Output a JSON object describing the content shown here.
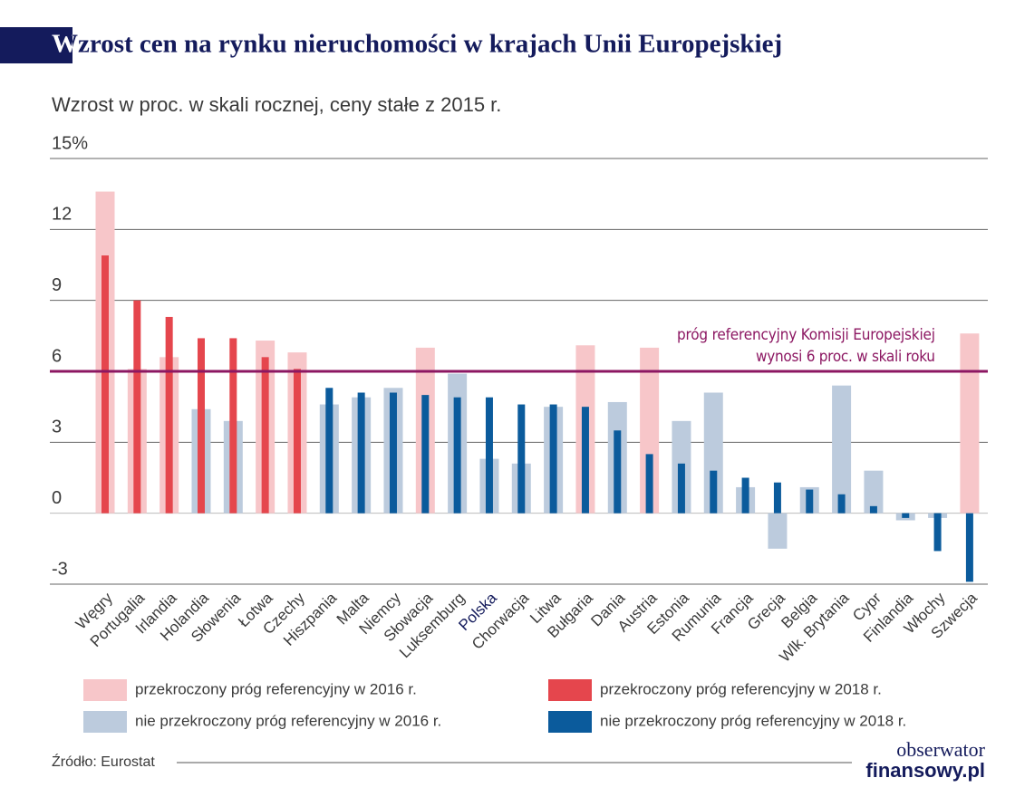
{
  "chart_data": {
    "type": "bar",
    "title": "Wzrost cen na rynku nieruchomości w krajach Unii Europejskiej",
    "subtitle": "Wzrost w proc. w skali rocznej, ceny stałe z 2015 r.",
    "categories": [
      "Węgry",
      "Portugalia",
      "Irlandia",
      "Holandia",
      "Słowenia",
      "Łotwa",
      "Czechy",
      "Hiszpania",
      "Malta",
      "Niemcy",
      "Słowacja",
      "Luksemburg",
      "Polska",
      "Chorwacja",
      "Litwa",
      "Bułgaria",
      "Dania",
      "Austria",
      "Estonia",
      "Rumunia",
      "Francja",
      "Grecja",
      "Belgia",
      "Wlk. Brytania",
      "Cypr",
      "Finlandia",
      "Włochy",
      "Szwecja"
    ],
    "highlight": {
      "index": 12,
      "color": "#141b5c"
    },
    "series": [
      {
        "color_above": "#f7c6c9",
        "color_below": "#bccbdd",
        "values": [
          13.6,
          6.1,
          6.6,
          4.4,
          3.9,
          7.3,
          6.8,
          4.6,
          4.9,
          5.3,
          7.0,
          5.9,
          2.3,
          2.1,
          4.5,
          7.1,
          4.7,
          7.0,
          3.9,
          5.1,
          1.1,
          -1.5,
          1.1,
          5.4,
          1.8,
          -0.3,
          -0.2,
          7.6
        ]
      },
      {
        "color_above": "#e5464d",
        "color_below": "#0b5b9c",
        "values": [
          10.9,
          9.0,
          8.3,
          7.4,
          7.4,
          6.6,
          6.1,
          5.3,
          5.1,
          5.1,
          5.0,
          4.9,
          4.9,
          4.6,
          4.6,
          4.5,
          3.5,
          2.5,
          2.1,
          1.8,
          1.5,
          1.3,
          1.0,
          0.8,
          0.3,
          -0.2,
          -1.6,
          -2.9
        ]
      }
    ],
    "reference_line": {
      "value": 6,
      "color": "#8c1762",
      "label": [
        "próg referencyjny Komisji Europejskiej",
        "wynosi 6 proc. w skali roku"
      ]
    },
    "ylim": [
      -3,
      15
    ],
    "yticks": [
      {
        "value": 15,
        "label": "15%"
      },
      12,
      9,
      6,
      3,
      0,
      -3
    ],
    "grid": true,
    "legend": [
      {
        "label": "przekroczony próg referencyjny w 2016 r.",
        "color": "#f7c6c9"
      },
      {
        "label": "przekroczony próg referencyjny w 2018 r.",
        "color": "#e5464d"
      },
      {
        "label": "nie przekroczony próg referencyjny w 2016 r.",
        "color": "#bccbdd"
      },
      {
        "label": "nie przekroczony próg referencyjny w 2018 r.",
        "color": "#0b5b9c"
      }
    ],
    "source": "Źródło: Eurostat",
    "logo": [
      "obserwator",
      "finansowy.pl"
    ]
  }
}
